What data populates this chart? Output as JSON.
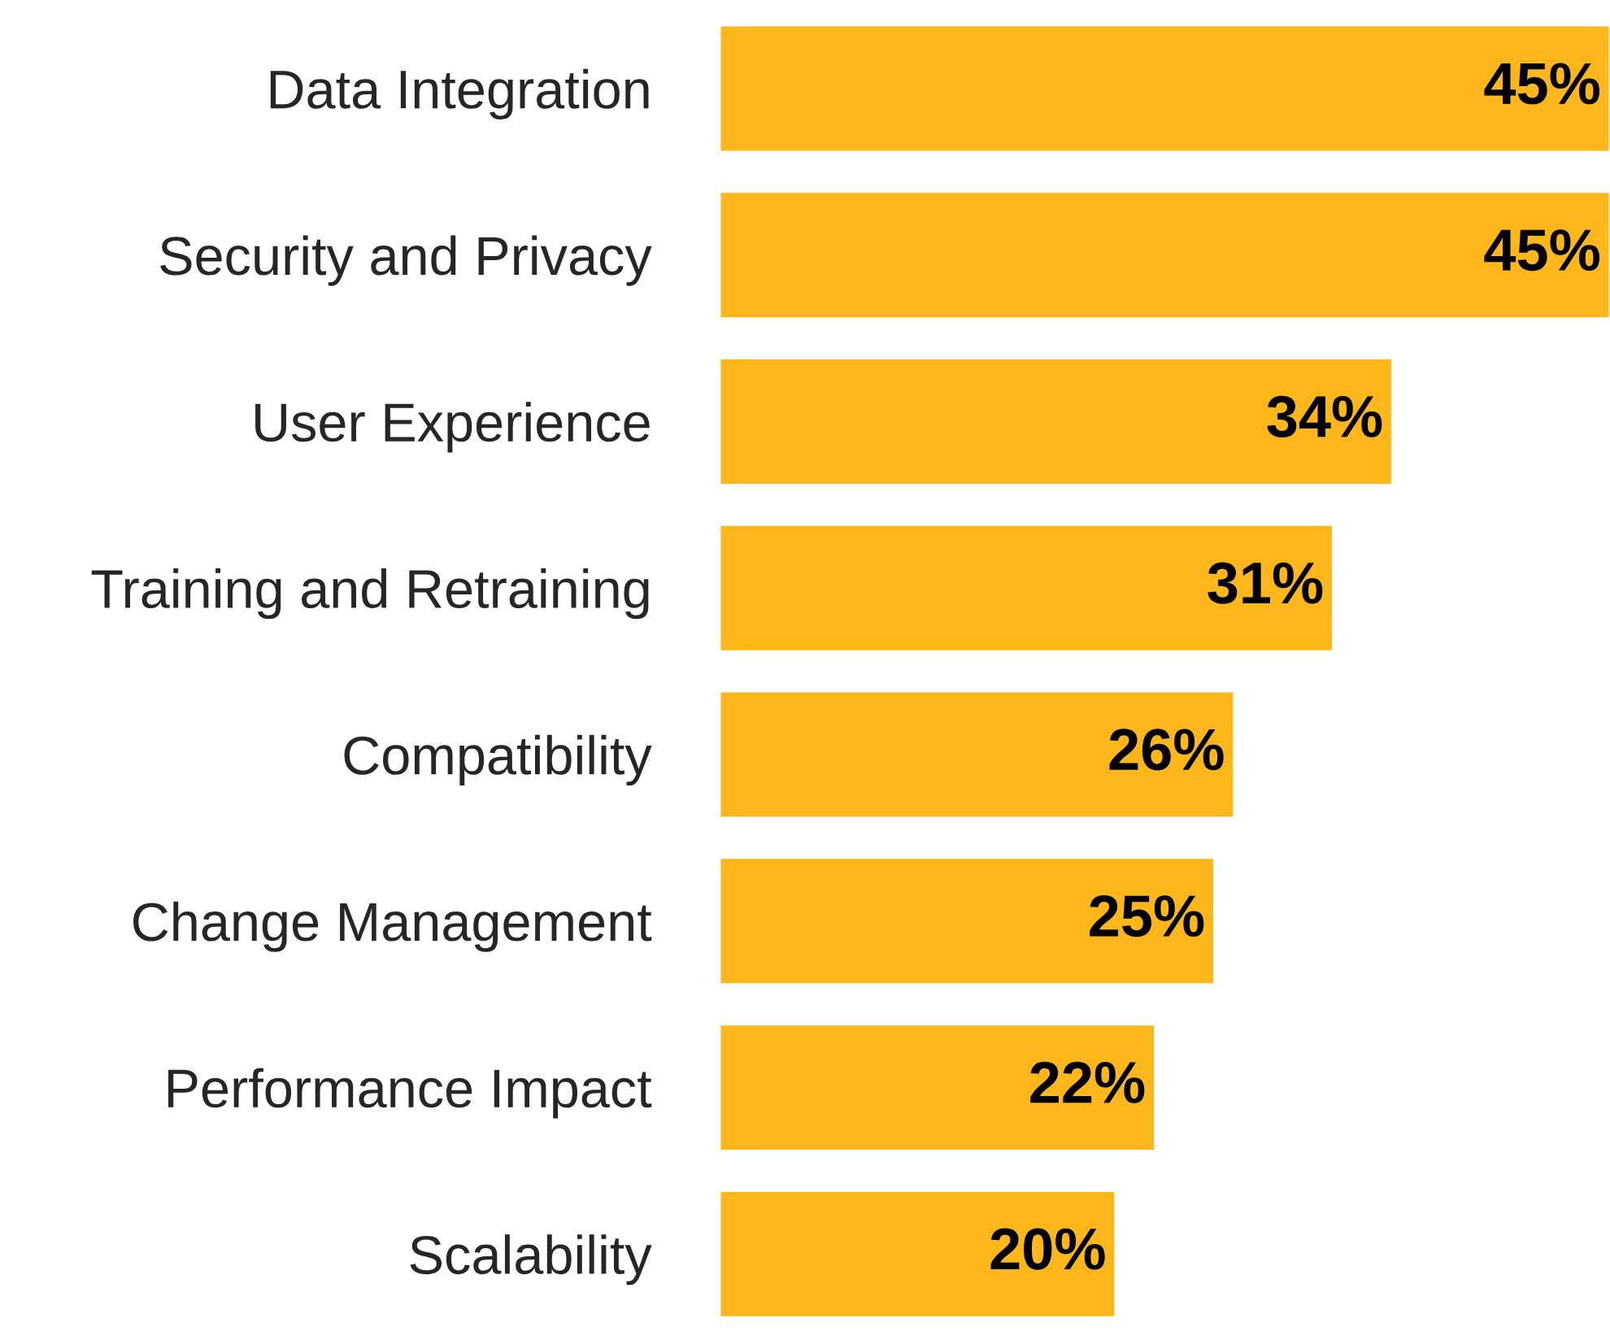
{
  "chart_data": {
    "type": "bar",
    "orientation": "horizontal",
    "categories": [
      "Data Integration",
      "Security and Privacy",
      "User Experience",
      "Training and Retraining",
      "Compatibility",
      "Change Management",
      "Performance Impact",
      "Scalability"
    ],
    "values": [
      45,
      45,
      34,
      31,
      26,
      25,
      22,
      20
    ],
    "value_labels": [
      "45%",
      "45%",
      "34%",
      "31%",
      "26%",
      "25%",
      "22%",
      "20%"
    ],
    "color": "#fdb71a",
    "grid": false,
    "legend": false
  }
}
